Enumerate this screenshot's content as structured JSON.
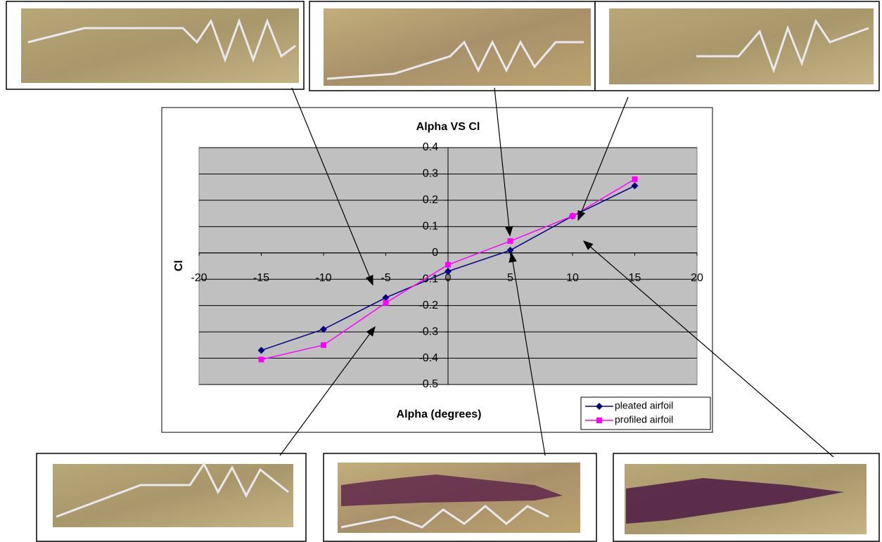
{
  "chart_data": {
    "type": "line",
    "title": "Alpha VS Cl",
    "x_label": "Alpha (degrees)",
    "y_label": "Cl",
    "x": [
      -15,
      -10,
      -5,
      0,
      5,
      10,
      15
    ],
    "series": [
      {
        "name": "pleated airfoil",
        "color": "#000080",
        "marker": "diamond",
        "values": [
          -0.37,
          -0.29,
          -0.17,
          -0.07,
          0.01,
          0.14,
          0.255
        ]
      },
      {
        "name": "profiled airfoil",
        "color": "#ff00ff",
        "marker": "square",
        "values": [
          -0.405,
          -0.35,
          -0.19,
          -0.045,
          0.045,
          0.14,
          0.28
        ]
      }
    ],
    "xlim": [
      -20,
      20
    ],
    "xticks": [
      -20,
      -15,
      -10,
      -5,
      0,
      5,
      10,
      15,
      20
    ],
    "ylim": [
      -0.5,
      0.4
    ],
    "yticks": [
      -0.5,
      -0.4,
      -0.3,
      -0.2,
      -0.1,
      0,
      0.1,
      0.2,
      0.3,
      0.4
    ],
    "grid": true,
    "legend": "lower-right"
  }
}
